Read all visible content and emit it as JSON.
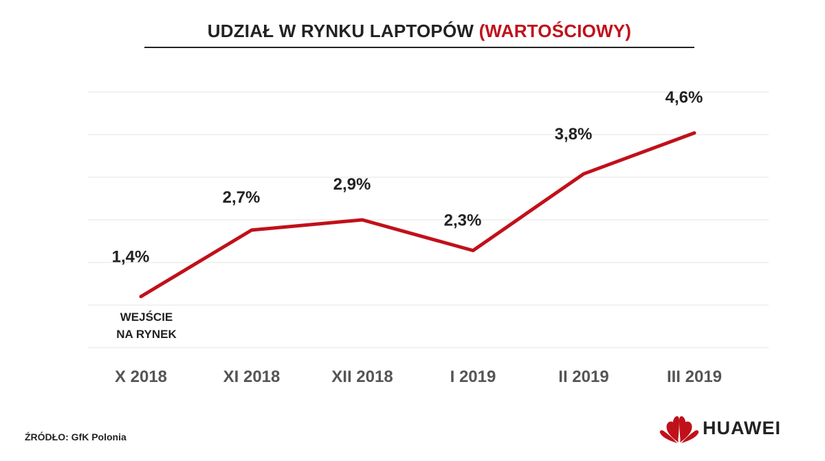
{
  "header": {
    "title_main": "UDZIAŁ W RYNKU LAPTOPÓW",
    "title_accent": "(WARTOŚCIOWY)"
  },
  "chart_data": {
    "type": "line",
    "categories": [
      "X 2018",
      "XI 2018",
      "XII 2018",
      "I 2019",
      "II 2019",
      "III 2019"
    ],
    "values": [
      1.4,
      2.7,
      2.9,
      2.3,
      3.8,
      4.6
    ],
    "data_labels": [
      "1,4%",
      "2,7%",
      "2,9%",
      "2,3%",
      "3,8%",
      "4,6%"
    ],
    "annotation": {
      "category": "X 2018",
      "lines": [
        "WEJŚCIE",
        "NA RYNEK"
      ]
    },
    "ylim": [
      0.4,
      5.4
    ],
    "grid": true,
    "line_color": "#c0111a"
  },
  "footer": {
    "source": "ŹRÓDŁO: GfK Polonia",
    "brand": "HUAWEI",
    "brand_color": "#c0111a"
  }
}
